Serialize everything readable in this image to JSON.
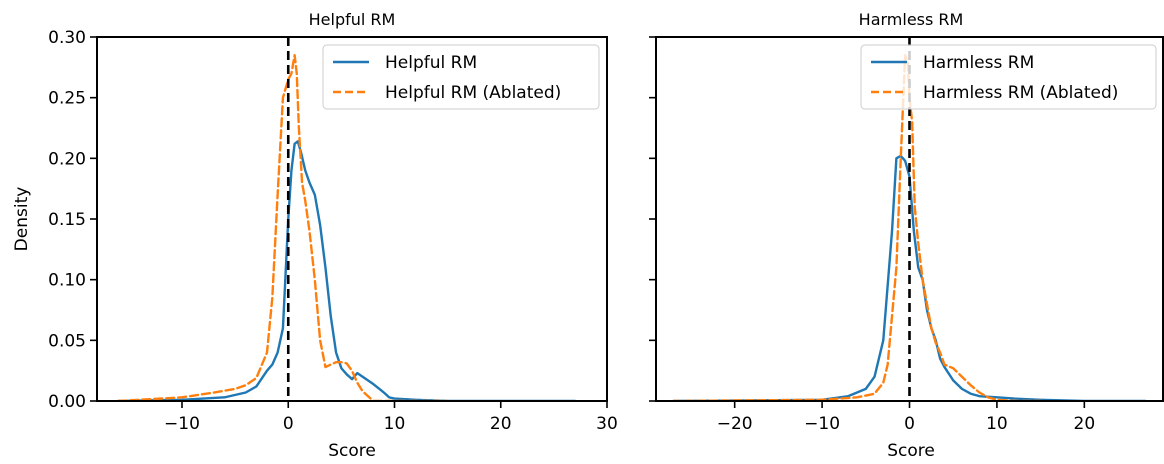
{
  "chart_data": [
    {
      "type": "line",
      "title": "Helpful RM",
      "xlabel": "Score",
      "ylabel": "Density",
      "xlim": [
        -18,
        30
      ],
      "ylim": [
        0,
        0.3
      ],
      "xticks": [
        -10,
        0,
        10,
        20,
        30
      ],
      "xtick_labels": [
        "−10",
        "0",
        "10",
        "20",
        "30"
      ],
      "yticks": [
        0,
        0.05,
        0.1,
        0.15,
        0.2,
        0.25,
        0.3
      ],
      "ytick_labels": [
        "0.00",
        "0.05",
        "0.10",
        "0.15",
        "0.20",
        "0.25",
        "0.30"
      ],
      "vline_x": 0,
      "legend_position": "upper right",
      "series": [
        {
          "name": "Helpful RM",
          "color": "#1f77b4",
          "dash": "solid",
          "x": [
            -16,
            -10,
            -6,
            -4,
            -3,
            -2,
            -1.5,
            -1,
            -0.5,
            0,
            0.3,
            0.6,
            0.9,
            1.2,
            1.6,
            2,
            2.5,
            3,
            3.5,
            4,
            4.5,
            5,
            5.5,
            6,
            6.5,
            7,
            8,
            9,
            9.5,
            10,
            12,
            15,
            20,
            27
          ],
          "y": [
            0.0,
            0.001,
            0.003,
            0.007,
            0.012,
            0.025,
            0.03,
            0.04,
            0.06,
            0.15,
            0.19,
            0.212,
            0.214,
            0.205,
            0.19,
            0.18,
            0.17,
            0.145,
            0.11,
            0.07,
            0.04,
            0.027,
            0.022,
            0.018,
            0.023,
            0.02,
            0.014,
            0.007,
            0.003,
            0.002,
            0.001,
            0.0,
            0.0,
            0.0
          ]
        },
        {
          "name": "Helpful RM (Ablated)",
          "color": "#ff7f0e",
          "dash": "dashed",
          "x": [
            -16,
            -10,
            -7,
            -5,
            -4,
            -3,
            -2,
            -1.5,
            -1,
            -0.5,
            0,
            0.3,
            0.6,
            0.8,
            1,
            1.3,
            1.6,
            2,
            2.5,
            3,
            3.5,
            4,
            4.5,
            5,
            5.5,
            6,
            6.5,
            7,
            8,
            10,
            15
          ],
          "y": [
            0.0,
            0.003,
            0.007,
            0.01,
            0.013,
            0.019,
            0.04,
            0.085,
            0.17,
            0.25,
            0.265,
            0.27,
            0.285,
            0.27,
            0.225,
            0.18,
            0.165,
            0.14,
            0.1,
            0.05,
            0.028,
            0.03,
            0.032,
            0.032,
            0.031,
            0.025,
            0.015,
            0.008,
            0.0,
            0.0,
            0.0
          ]
        }
      ]
    },
    {
      "type": "line",
      "title": "Harmless RM",
      "xlabel": "Score",
      "ylabel": "",
      "xlim": [
        -29,
        29
      ],
      "ylim": [
        0,
        0.3
      ],
      "xticks": [
        -20,
        -10,
        0,
        10,
        20
      ],
      "xtick_labels": [
        "−20",
        "−10",
        "0",
        "10",
        "20"
      ],
      "yticks": [
        0,
        0.05,
        0.1,
        0.15,
        0.2,
        0.25,
        0.3
      ],
      "ytick_labels": [],
      "vline_x": 0,
      "legend_position": "upper right",
      "series": [
        {
          "name": "Harmless RM",
          "color": "#1f77b4",
          "dash": "solid",
          "x": [
            -27,
            -10,
            -7,
            -5,
            -4,
            -3,
            -2,
            -1.5,
            -1,
            -0.5,
            0,
            0.5,
            1,
            1.5,
            2,
            2.5,
            3,
            3.5,
            4,
            5,
            6,
            7,
            8,
            10,
            12,
            15,
            20,
            27
          ],
          "y": [
            0.0,
            0.001,
            0.004,
            0.01,
            0.02,
            0.05,
            0.14,
            0.2,
            0.202,
            0.198,
            0.185,
            0.14,
            0.11,
            0.1,
            0.075,
            0.06,
            0.05,
            0.035,
            0.028,
            0.017,
            0.01,
            0.006,
            0.004,
            0.003,
            0.002,
            0.001,
            0.0,
            0.0
          ]
        },
        {
          "name": "Harmless RM (Ablated)",
          "color": "#ff7f0e",
          "dash": "dashed",
          "x": [
            -27,
            -10,
            -6,
            -4,
            -3,
            -2.5,
            -2,
            -1.5,
            -1,
            -0.5,
            -0.2,
            0,
            0.3,
            0.6,
            1,
            1.5,
            2,
            2.5,
            3,
            3.5,
            4,
            5,
            6,
            7,
            8,
            9,
            10,
            12,
            15
          ],
          "y": [
            0.0,
            0.001,
            0.003,
            0.006,
            0.015,
            0.03,
            0.07,
            0.11,
            0.2,
            0.285,
            0.28,
            0.25,
            0.23,
            0.16,
            0.13,
            0.1,
            0.08,
            0.06,
            0.048,
            0.04,
            0.03,
            0.027,
            0.02,
            0.013,
            0.007,
            0.003,
            0.001,
            0.0,
            0.0
          ]
        }
      ]
    }
  ]
}
